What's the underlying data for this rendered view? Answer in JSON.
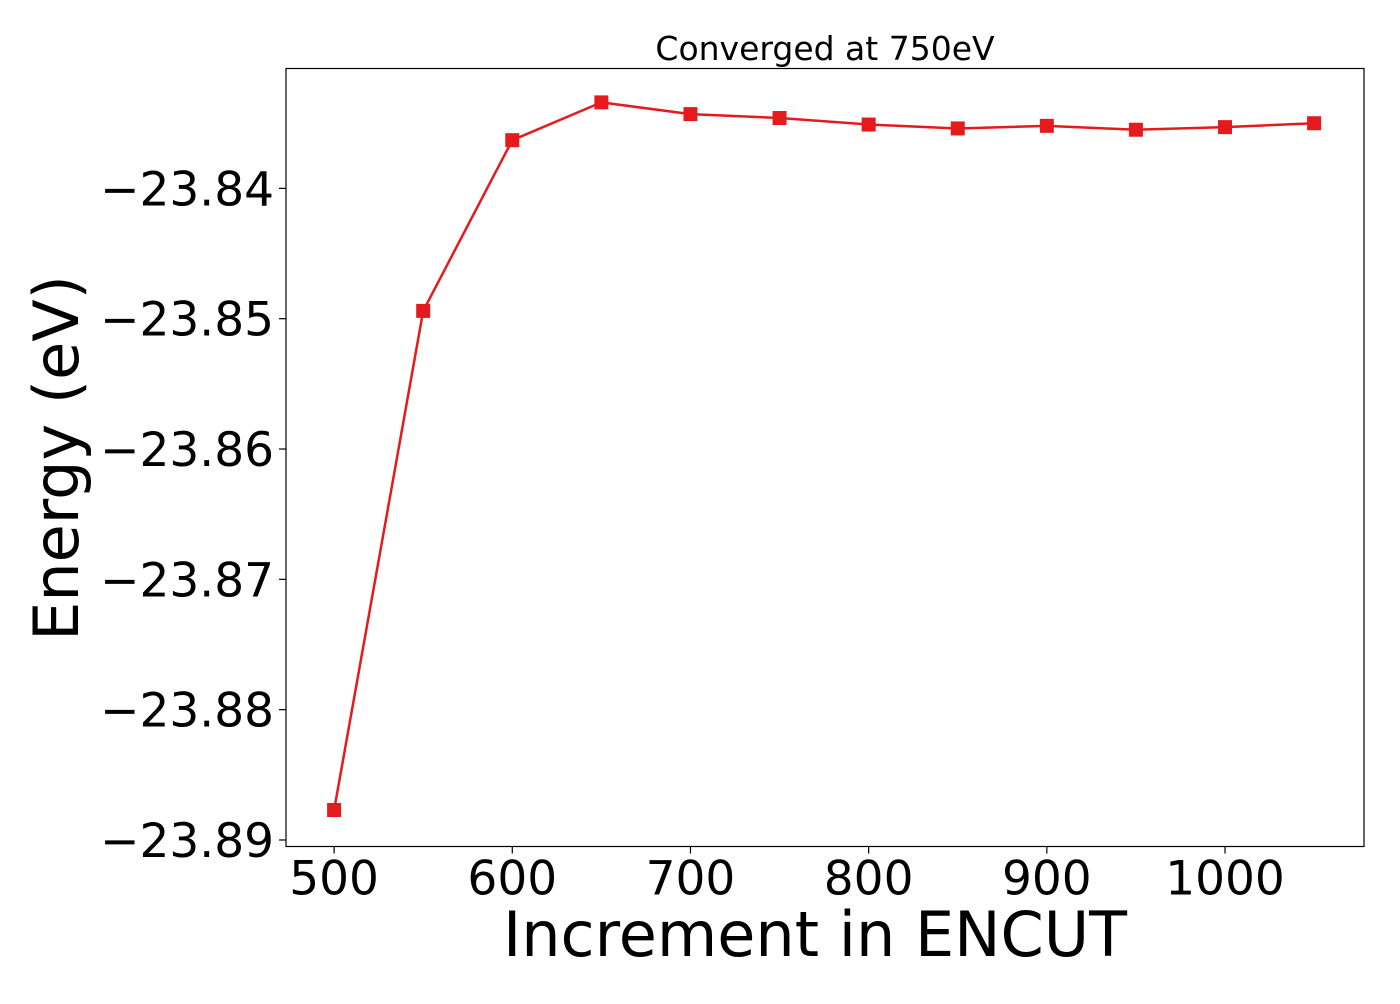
{
  "chart_data": {
    "type": "line",
    "title": "Converged at 750eV",
    "xlabel": "Increment in ENCUT",
    "ylabel": "Energy (eV)",
    "x": [
      500,
      550,
      600,
      650,
      700,
      750,
      800,
      850,
      900,
      950,
      1000,
      1050
    ],
    "series": [
      {
        "values": [
          -23.8877,
          -23.8494,
          -23.8363,
          -23.8334,
          -23.8343,
          -23.8346,
          -23.8351,
          -23.8354,
          -23.8352,
          -23.8355,
          -23.8353,
          -23.835
        ],
        "color": "#e41a1c",
        "marker": "square"
      }
    ],
    "xlim": [
      473,
      1078
    ],
    "ylim": [
      -23.8905,
      -23.8308
    ],
    "xticks": [
      500,
      600,
      700,
      800,
      900,
      1000
    ],
    "xtick_labels": [
      "500",
      "600",
      "700",
      "800",
      "900",
      "1000"
    ],
    "yticks": [
      -23.84,
      -23.85,
      -23.86,
      -23.87,
      -23.88,
      -23.89
    ],
    "ytick_labels": [
      "−23.84",
      "−23.85",
      "−23.86",
      "−23.87",
      "−23.88",
      "−23.89"
    ],
    "grid": false,
    "legend": "none"
  }
}
